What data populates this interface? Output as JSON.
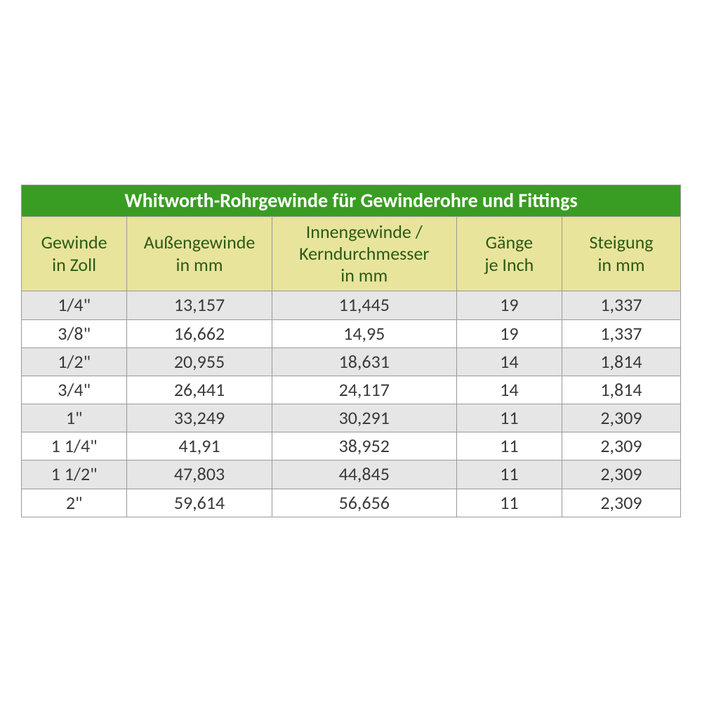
{
  "table": {
    "type": "table",
    "title": "Whitworth-Rohrgewinde für Gewinderohre und Fittings",
    "title_bg": "#3a9d23",
    "title_color": "#ffffff",
    "title_fontsize": 28,
    "header_bg": "#e8e49b",
    "header_color": "#2b5a17",
    "header_fontsize": 26,
    "body_fontsize": 26,
    "body_color": "#3a3a3a",
    "row_odd_bg": "#e6e6e6",
    "row_even_bg": "#ffffff",
    "border_color": "#999999",
    "columns": [
      {
        "label_line1": "Gewinde",
        "label_line2": "in Zoll",
        "label_line3": "",
        "width_pct": 16
      },
      {
        "label_line1": "Außengewinde",
        "label_line2": "in mm",
        "label_line3": "",
        "width_pct": 22
      },
      {
        "label_line1": "Innengewinde /",
        "label_line2": "Kerndurchmesser",
        "label_line3": "in mm",
        "width_pct": 28
      },
      {
        "label_line1": "Gänge",
        "label_line2": "je Inch",
        "label_line3": "",
        "width_pct": 16
      },
      {
        "label_line1": "Steigung",
        "label_line2": "in mm",
        "label_line3": "",
        "width_pct": 18
      }
    ],
    "rows": [
      [
        "1/4\"",
        "13,157",
        "11,445",
        "19",
        "1,337"
      ],
      [
        "3/8\"",
        "16,662",
        "14,95",
        "19",
        "1,337"
      ],
      [
        "1/2\"",
        "20,955",
        "18,631",
        "14",
        "1,814"
      ],
      [
        "3/4\"",
        "26,441",
        "24,117",
        "14",
        "1,814"
      ],
      [
        "1\"",
        "33,249",
        "30,291",
        "11",
        "2,309"
      ],
      [
        "1 1/4\"",
        "41,91",
        "38,952",
        "11",
        "2,309"
      ],
      [
        "1 1/2\"",
        "47,803",
        "44,845",
        "11",
        "2,309"
      ],
      [
        "2\"",
        "59,614",
        "56,656",
        "11",
        "2,309"
      ]
    ]
  }
}
